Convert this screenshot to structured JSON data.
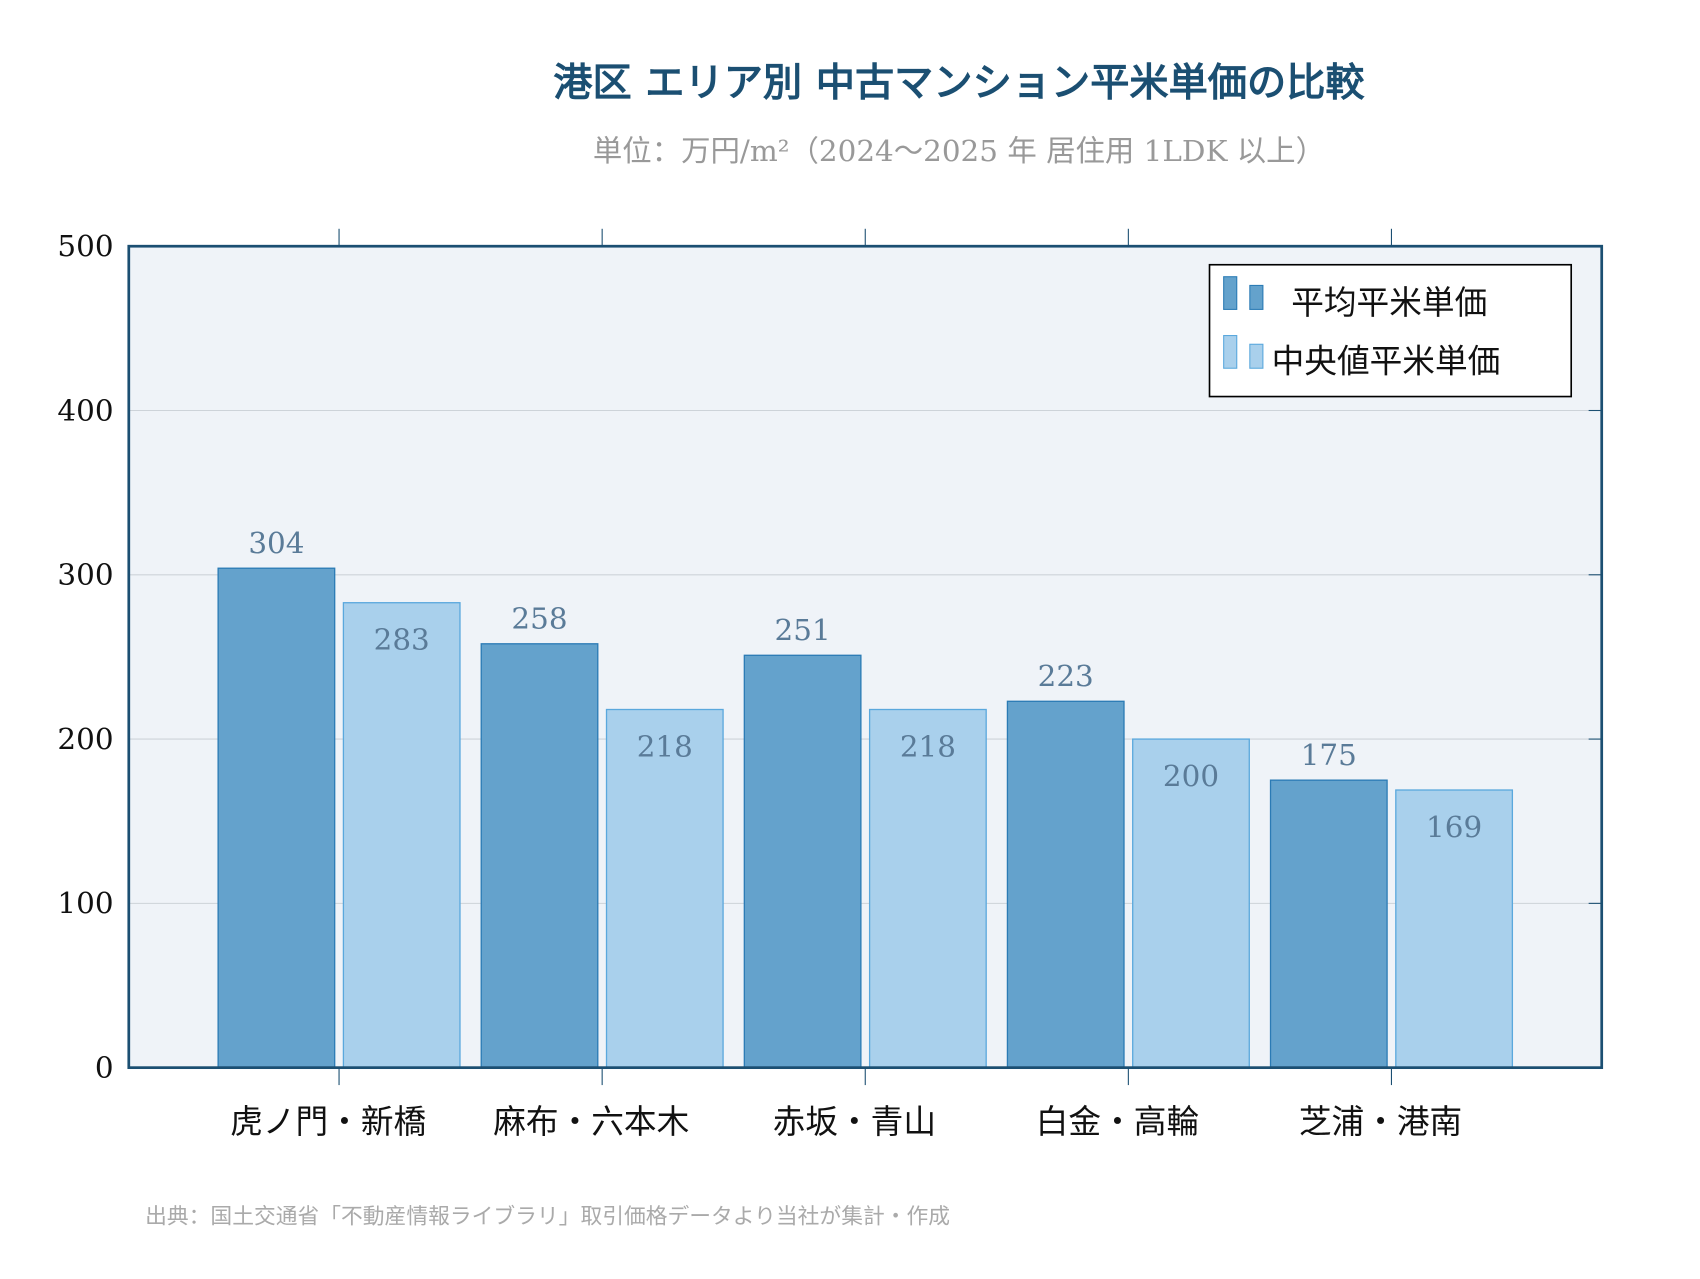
{
  "chart_data": {
    "type": "bar",
    "title": "港区 エリア別 中古マンション平米単価の比較",
    "subtitle": "単位：万円/m²（2024〜2025 年 居住用 1LDK 以上）",
    "categories": [
      "虎ノ門・新橋",
      "麻布・六本木",
      "赤坂・青山",
      "白金・高輪",
      "芝浦・港南"
    ],
    "series": [
      {
        "name": "平均平米単価",
        "values": [
          304,
          258,
          251,
          223,
          175
        ],
        "color": "#64a2cc",
        "edge": "#2b7bb5"
      },
      {
        "name": "中央値平米単価",
        "values": [
          283,
          218,
          218,
          200,
          169
        ],
        "color": "#a9d0ec",
        "edge": "#5aa8dd"
      }
    ],
    "ylim": [
      0,
      500
    ],
    "yticks": [
      "0",
      "100",
      "200",
      "300",
      "400",
      "500"
    ],
    "grid": true,
    "legend": "top-right",
    "plot_background": "#eff3f8",
    "axis_color": "#1b4f72",
    "source": "出典：国土交通省「不動産情報ライブラリ」取引価格データより当社が集計・作成"
  }
}
